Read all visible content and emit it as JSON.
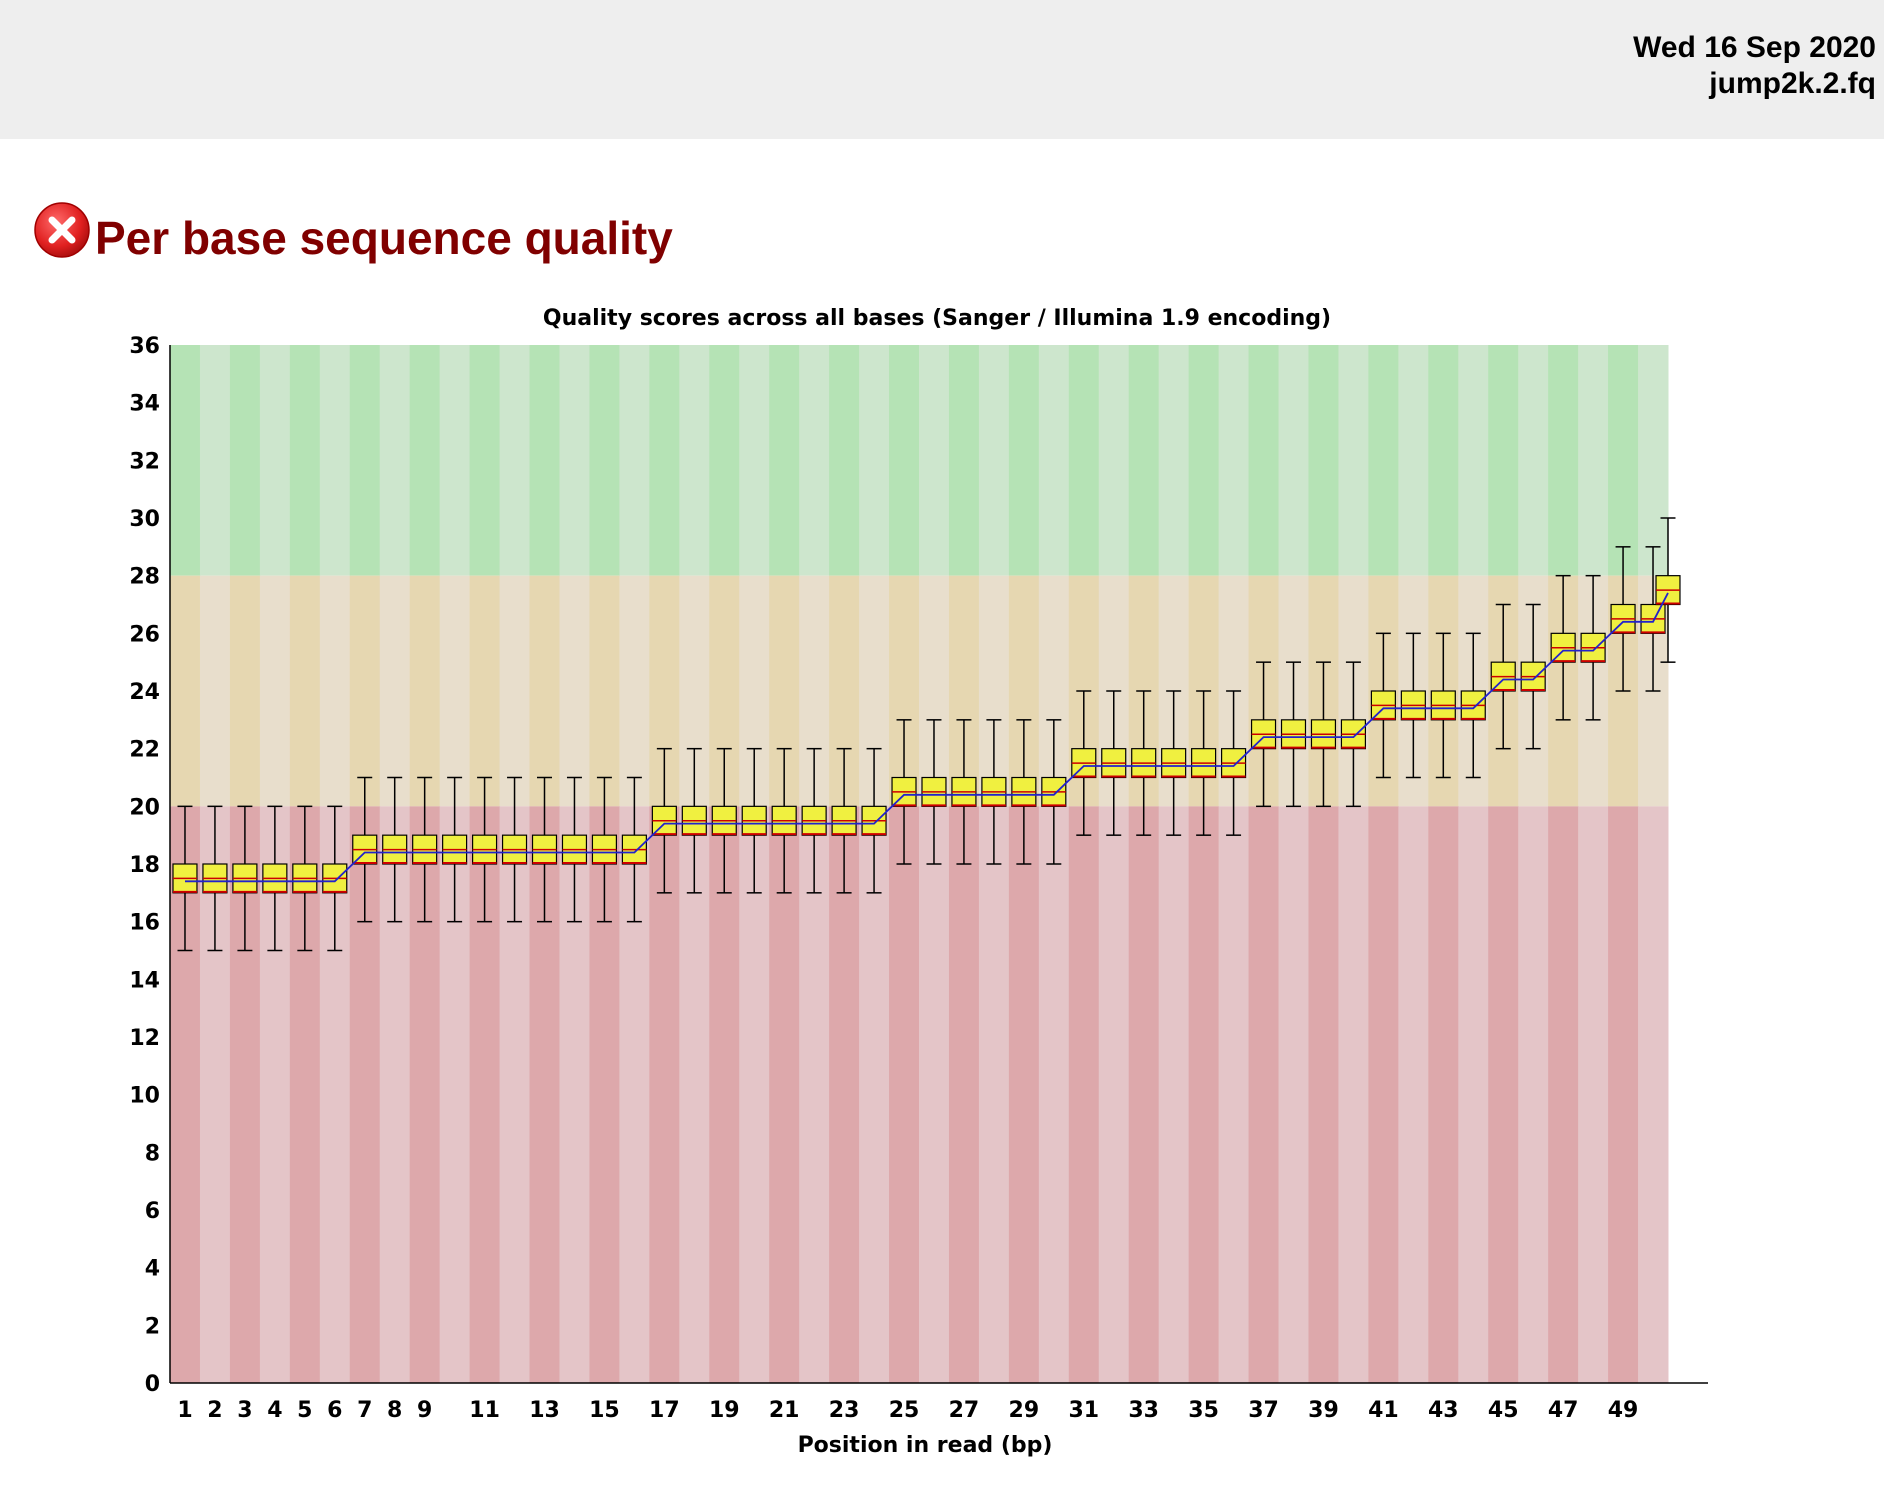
{
  "header": {
    "date": "Wed 16 Sep 2020",
    "filename": "jump2k.2.fq"
  },
  "module": {
    "status": "fail",
    "status_icon": "error-x-icon",
    "title": "Per base sequence quality"
  },
  "colors": {
    "heading": "#800000",
    "zone_good": "#b5e3b5",
    "zone_good_alt": "#cde6cd",
    "zone_warn": "#e6d7b1",
    "zone_warn_alt": "#e8decc",
    "zone_bad": "#dda8ab",
    "zone_bad_alt": "#e4c5c8",
    "box_fill": "#f0f040",
    "box_border": "#cc0000",
    "mean_line": "#2222cc"
  },
  "chart_data": {
    "type": "boxplot",
    "title": "Quality scores across all bases (Sanger / Illumina 1.9 encoding)",
    "xlabel": "Position in read (bp)",
    "ylabel": "",
    "ylim": [
      0,
      36
    ],
    "yticks": [
      0,
      2,
      4,
      6,
      8,
      10,
      12,
      14,
      16,
      18,
      20,
      22,
      24,
      26,
      28,
      30,
      32,
      34,
      36
    ],
    "xtick_labels": [
      "1",
      "2",
      "3",
      "4",
      "5",
      "6",
      "7",
      "8",
      "9",
      "11",
      "13",
      "15",
      "17",
      "19",
      "21",
      "23",
      "25",
      "27",
      "29",
      "31",
      "33",
      "35",
      "37",
      "39",
      "41",
      "43",
      "45",
      "47",
      "49"
    ],
    "xtick_positions": [
      1,
      2,
      3,
      4,
      5,
      6,
      7,
      8,
      9,
      11,
      13,
      15,
      17,
      19,
      21,
      23,
      25,
      27,
      29,
      31,
      33,
      35,
      37,
      39,
      41,
      43,
      45,
      47,
      49
    ],
    "zones": [
      {
        "name": "good",
        "from": 28,
        "to": 36
      },
      {
        "name": "warning",
        "from": 20,
        "to": 28
      },
      {
        "name": "poor",
        "from": 0,
        "to": 20
      }
    ],
    "positions": [
      1,
      2,
      3,
      4,
      5,
      6,
      7,
      8,
      9,
      10,
      11,
      12,
      13,
      14,
      15,
      16,
      17,
      18,
      19,
      20,
      21,
      22,
      23,
      24,
      25,
      26,
      27,
      28,
      29,
      30,
      31,
      32,
      33,
      34,
      35,
      36,
      37,
      38,
      39,
      40,
      41,
      42,
      43,
      44,
      45,
      46,
      47,
      48,
      49,
      50
    ],
    "median": [
      17.5,
      17.5,
      17.5,
      17.5,
      17.5,
      17.5,
      18.5,
      18.5,
      18.5,
      18.5,
      18.5,
      18.5,
      18.5,
      18.5,
      18.5,
      18.5,
      19.5,
      19.5,
      19.5,
      19.5,
      19.5,
      19.5,
      19.5,
      19.5,
      20.5,
      20.5,
      20.5,
      20.5,
      20.5,
      20.5,
      21.5,
      21.5,
      21.5,
      21.5,
      21.5,
      21.5,
      22.5,
      22.5,
      22.5,
      22.5,
      23.5,
      23.5,
      23.5,
      23.5,
      24.5,
      24.5,
      25.5,
      25.5,
      26.5,
      26.5
    ],
    "q1": [
      17,
      17,
      17,
      17,
      17,
      17,
      18,
      18,
      18,
      18,
      18,
      18,
      18,
      18,
      18,
      18,
      19,
      19,
      19,
      19,
      19,
      19,
      19,
      19,
      20,
      20,
      20,
      20,
      20,
      20,
      21,
      21,
      21,
      21,
      21,
      21,
      22,
      22,
      22,
      22,
      23,
      23,
      23,
      23,
      24,
      24,
      25,
      25,
      26,
      26
    ],
    "q3": [
      18,
      18,
      18,
      18,
      18,
      18,
      19,
      19,
      19,
      19,
      19,
      19,
      19,
      19,
      19,
      19,
      20,
      20,
      20,
      20,
      20,
      20,
      20,
      20,
      21,
      21,
      21,
      21,
      21,
      21,
      22,
      22,
      22,
      22,
      22,
      22,
      23,
      23,
      23,
      23,
      24,
      24,
      24,
      24,
      25,
      25,
      26,
      26,
      27,
      27
    ],
    "whisker_low": [
      15,
      15,
      15,
      15,
      15,
      15,
      16,
      16,
      16,
      16,
      16,
      16,
      16,
      16,
      16,
      16,
      17,
      17,
      17,
      17,
      17,
      17,
      17,
      17,
      18,
      18,
      18,
      18,
      18,
      18,
      19,
      19,
      19,
      19,
      19,
      19,
      20,
      20,
      20,
      20,
      21,
      21,
      21,
      21,
      22,
      22,
      23,
      23,
      24,
      24
    ],
    "whisker_high": [
      20,
      20,
      20,
      20,
      20,
      20,
      21,
      21,
      21,
      21,
      21,
      21,
      21,
      21,
      21,
      21,
      22,
      22,
      22,
      22,
      22,
      22,
      22,
      22,
      23,
      23,
      23,
      23,
      23,
      23,
      24,
      24,
      24,
      24,
      24,
      24,
      25,
      25,
      25,
      25,
      26,
      26,
      26,
      26,
      27,
      27,
      28,
      28,
      29,
      29
    ],
    "mean": [
      17.4,
      17.4,
      17.4,
      17.4,
      17.4,
      17.4,
      18.4,
      18.4,
      18.4,
      18.4,
      18.4,
      18.4,
      18.4,
      18.4,
      18.4,
      18.4,
      19.4,
      19.4,
      19.4,
      19.4,
      19.4,
      19.4,
      19.4,
      19.4,
      20.4,
      20.4,
      20.4,
      20.4,
      20.4,
      20.4,
      21.4,
      21.4,
      21.4,
      21.4,
      21.4,
      21.4,
      22.4,
      22.4,
      22.4,
      22.4,
      23.4,
      23.4,
      23.4,
      23.4,
      24.4,
      24.4,
      25.4,
      25.4,
      26.4,
      26.4
    ],
    "extra_position": {
      "x": 51,
      "median": 27.5,
      "q1": 27,
      "q3": 28,
      "whisker_low": 25,
      "whisker_high": 30,
      "mean": 27.4
    }
  }
}
